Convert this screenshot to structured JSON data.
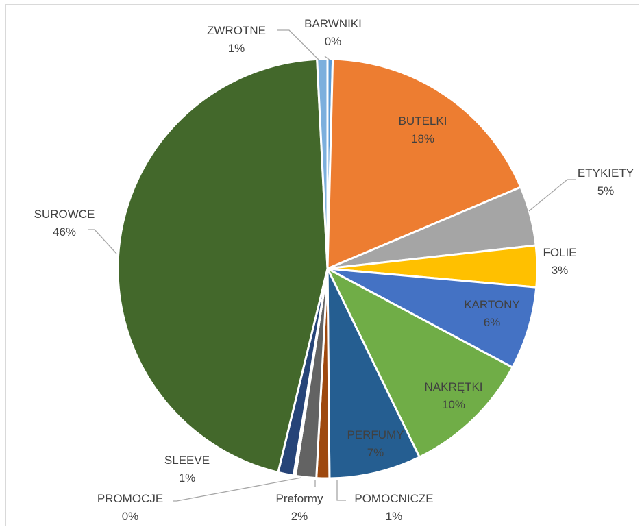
{
  "chart_data": {
    "type": "pie",
    "title": "",
    "slices": [
      {
        "name": "BARWNIKI",
        "value": 0.4,
        "label_pct": "0%",
        "color": "#5b9bd5"
      },
      {
        "name": "BUTELKI",
        "value": 18.3,
        "label_pct": "18%",
        "color": "#ed7d31"
      },
      {
        "name": "ETYKIETY",
        "value": 4.6,
        "label_pct": "5%",
        "color": "#a5a5a5"
      },
      {
        "name": "FOLIE",
        "value": 3.2,
        "label_pct": "3%",
        "color": "#ffc000"
      },
      {
        "name": "KARTONY",
        "value": 6.4,
        "label_pct": "6%",
        "color": "#4472c4"
      },
      {
        "name": "NAKRĘTKI",
        "value": 10.0,
        "label_pct": "10%",
        "color": "#70ad47"
      },
      {
        "name": "PERFUMY",
        "value": 7.1,
        "label_pct": "7%",
        "color": "#255e91"
      },
      {
        "name": "POMOCNICZE",
        "value": 1.0,
        "label_pct": "1%",
        "color": "#9e480e"
      },
      {
        "name": "Preformy",
        "value": 1.6,
        "label_pct": "2%",
        "color": "#636363"
      },
      {
        "name": "PROMOCJE",
        "value": 0.15,
        "label_pct": "0%",
        "color": "#997300"
      },
      {
        "name": "SLEEVE",
        "value": 1.2,
        "label_pct": "1%",
        "color": "#264478"
      },
      {
        "name": "SUROWCE",
        "value": 45.55,
        "label_pct": "46%",
        "color": "#43682b"
      },
      {
        "name": "ZWROTNE",
        "value": 0.8,
        "label_pct": "1%",
        "color": "#7cafdd"
      }
    ],
    "legend": "none",
    "slice_border_color": "#ffffff"
  }
}
